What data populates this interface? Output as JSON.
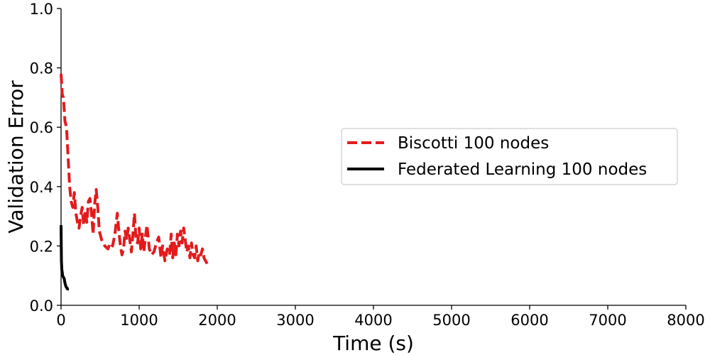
{
  "chart_data": {
    "type": "line",
    "xlabel": "Time (s)",
    "ylabel": "Validation Error",
    "xlim": [
      0,
      8000
    ],
    "ylim": [
      0,
      1.0
    ],
    "xticks": [
      0,
      1000,
      2000,
      3000,
      4000,
      5000,
      6000,
      7000,
      8000
    ],
    "xtick_labels": [
      "0",
      "1000",
      "2000",
      "3000",
      "4000",
      "5000",
      "6000",
      "7000",
      "8000"
    ],
    "yticks": [
      0,
      0.2,
      0.4,
      0.6,
      0.8,
      1.0
    ],
    "ytick_labels": [
      "0.0",
      "0.2",
      "0.4",
      "0.6",
      "0.8",
      "1.0"
    ],
    "grid": false,
    "legend_position": "center-right",
    "series": [
      {
        "name": "Biscotti 100 nodes",
        "color": "#e31a1c",
        "style": "dashed",
        "x": [
          0,
          15,
          30,
          50,
          70,
          90,
          110,
          130,
          150,
          170,
          190,
          210,
          230,
          250,
          270,
          290,
          310,
          330,
          350,
          370,
          390,
          410,
          430,
          450,
          470,
          490,
          520,
          560,
          600,
          630,
          660,
          690,
          720,
          740,
          760,
          780,
          800,
          820,
          840,
          860,
          880,
          900,
          920,
          940,
          960,
          980,
          1000,
          1020,
          1040,
          1060,
          1080,
          1100,
          1130,
          1160,
          1190,
          1220,
          1250,
          1280,
          1300,
          1330,
          1360,
          1390,
          1410,
          1430,
          1450,
          1470,
          1490,
          1510,
          1530,
          1550,
          1570,
          1590,
          1610,
          1630,
          1650,
          1670,
          1690,
          1710,
          1730,
          1750,
          1770,
          1790,
          1810,
          1830,
          1850,
          1870
        ],
        "y": [
          0.78,
          0.71,
          0.7,
          0.62,
          0.6,
          0.5,
          0.4,
          0.35,
          0.33,
          0.38,
          0.31,
          0.28,
          0.26,
          0.3,
          0.33,
          0.27,
          0.32,
          0.28,
          0.35,
          0.36,
          0.31,
          0.24,
          0.34,
          0.39,
          0.33,
          0.25,
          0.22,
          0.2,
          0.19,
          0.21,
          0.2,
          0.24,
          0.31,
          0.25,
          0.2,
          0.17,
          0.19,
          0.25,
          0.22,
          0.26,
          0.22,
          0.18,
          0.24,
          0.31,
          0.22,
          0.21,
          0.26,
          0.19,
          0.24,
          0.18,
          0.23,
          0.27,
          0.19,
          0.17,
          0.18,
          0.21,
          0.23,
          0.16,
          0.2,
          0.15,
          0.19,
          0.17,
          0.24,
          0.16,
          0.21,
          0.17,
          0.24,
          0.2,
          0.25,
          0.21,
          0.26,
          0.22,
          0.18,
          0.2,
          0.16,
          0.21,
          0.17,
          0.16,
          0.2,
          0.15,
          0.18,
          0.17,
          0.19,
          0.16,
          0.15,
          0.14
        ]
      },
      {
        "name": "Federated Learning 100 nodes",
        "color": "#000000",
        "style": "solid",
        "x": [
          0,
          5,
          10,
          15,
          20,
          30,
          40,
          50,
          60,
          70,
          80,
          90,
          100
        ],
        "y": [
          0.27,
          0.15,
          0.12,
          0.11,
          0.1,
          0.095,
          0.09,
          0.075,
          0.065,
          0.06,
          0.055,
          0.055,
          0.055
        ]
      }
    ]
  }
}
